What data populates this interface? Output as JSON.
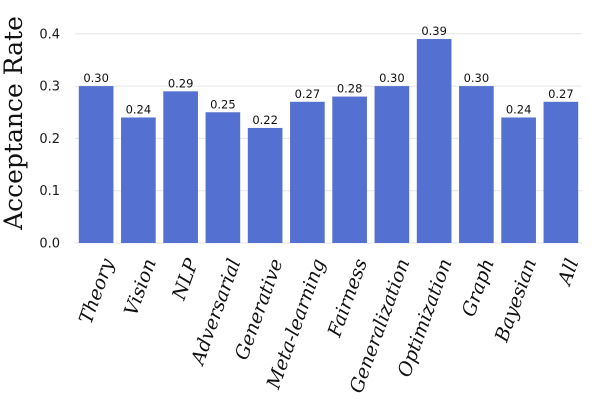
{
  "chart_data": {
    "type": "bar",
    "title": "",
    "xlabel": "",
    "ylabel": "Acceptance Rate",
    "ylim": [
      0,
      0.42
    ],
    "yticks": [
      0.0,
      0.1,
      0.2,
      0.3,
      0.4
    ],
    "ytick_labels": [
      "0.0",
      "0.1",
      "0.2",
      "0.3",
      "0.4"
    ],
    "grid": "horizontal",
    "bar_color": "#5470d0",
    "categories": [
      "Theory",
      "Vision",
      "NLP",
      "Adversarial",
      "Generative",
      "Meta-learning",
      "Fairness",
      "Generalization",
      "Optimization",
      "Graph",
      "Bayesian",
      "All"
    ],
    "values": [
      0.3,
      0.24,
      0.29,
      0.25,
      0.22,
      0.27,
      0.28,
      0.3,
      0.39,
      0.3,
      0.24,
      0.27
    ],
    "data_labels": [
      "0.30",
      "0.24",
      "0.29",
      "0.25",
      "0.22",
      "0.27",
      "0.28",
      "0.30",
      "0.39",
      "0.30",
      "0.24",
      "0.27"
    ]
  }
}
